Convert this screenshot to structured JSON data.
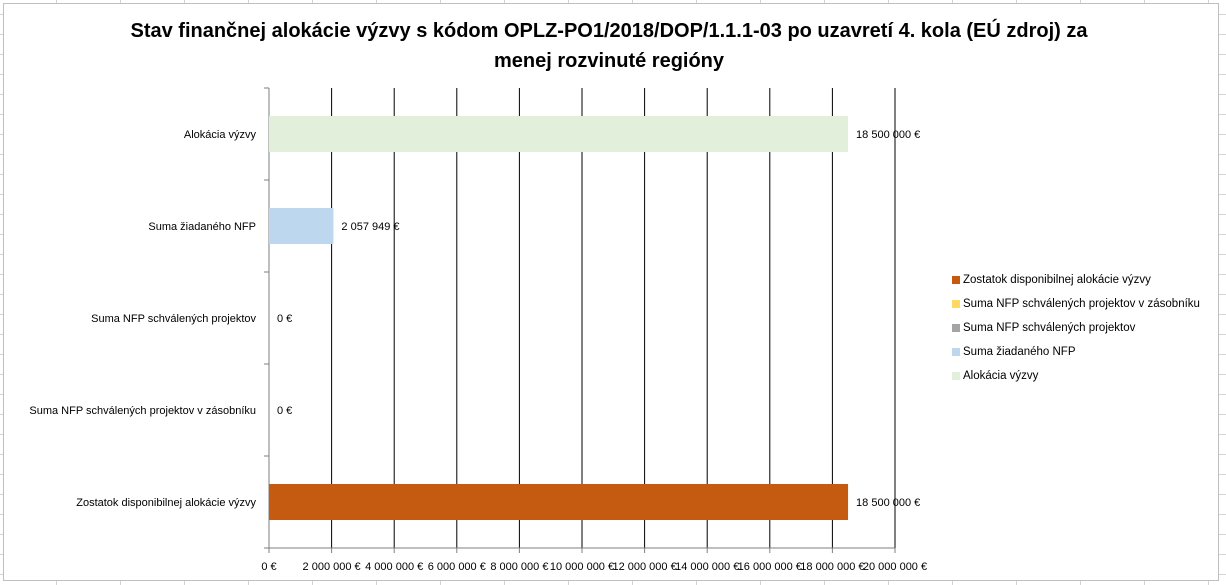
{
  "chart_data": {
    "type": "bar",
    "orientation": "horizontal",
    "title": "Stav finančnej alokácie výzvy s kódom OPLZ-PO1/2018/DOP/1.1.1-03 po uzavretí 4. kola (EÚ zdroj) za menej rozvinuté regióny",
    "categories": [
      "Alokácia výzvy",
      "Suma žiadaného NFP",
      "Suma NFP schválených projektov",
      "Suma NFP schválených projektov v zásobníku",
      "Zostatok disponibilnej alokácie výzvy"
    ],
    "values": [
      18500000,
      2057949,
      0,
      0,
      18500000
    ],
    "value_labels": [
      "18 500 000 €",
      "2 057 949 €",
      "0 €",
      "0 €",
      "18 500 000 €"
    ],
    "colors": [
      "#e2efda",
      "#bdd7ee",
      "#a5a5a5",
      "#ffd966",
      "#c55a11"
    ],
    "xlim": [
      0,
      20000000
    ],
    "xticks": [
      0,
      2000000,
      4000000,
      6000000,
      8000000,
      10000000,
      12000000,
      14000000,
      16000000,
      18000000,
      20000000
    ],
    "xtick_labels": [
      "0 €",
      "2 000 000 €",
      "4 000 000 €",
      "6 000 000 €",
      "8 000 000 €",
      "10 000 000 €",
      "12 000 000 €",
      "14 000 000 €",
      "16 000 000 €",
      "18 000 000 €",
      "20 000 000 €"
    ],
    "grid": "vertical",
    "legend_position": "right",
    "legend": [
      {
        "label": "Zostatok disponibilnej alokácie výzvy",
        "color": "#c55a11"
      },
      {
        "label": "Suma NFP schválených projektov v zásobníku",
        "color": "#ffd966"
      },
      {
        "label": "Suma NFP schválených projektov",
        "color": "#a5a5a5"
      },
      {
        "label": "Suma žiadaného NFP",
        "color": "#bdd7ee"
      },
      {
        "label": "Alokácia výzvy",
        "color": "#e2efda"
      }
    ]
  }
}
